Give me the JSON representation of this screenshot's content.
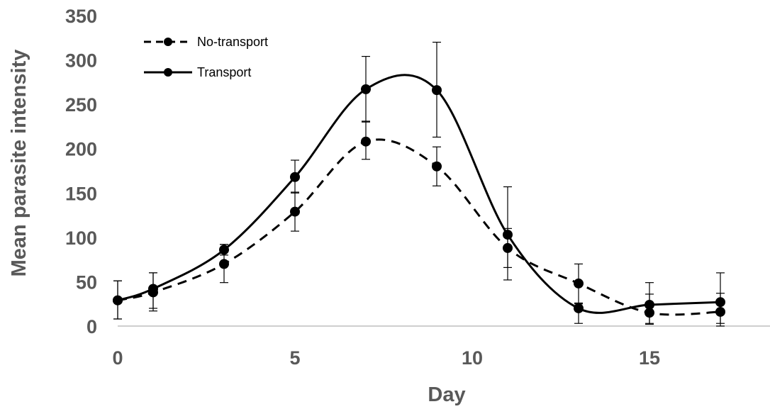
{
  "chart_data": {
    "type": "line",
    "title": "",
    "xlabel": "Day",
    "ylabel": "Mean parasite intensity",
    "xlim": [
      0,
      18
    ],
    "ylim": [
      0,
      350
    ],
    "x_ticks": [
      0,
      5,
      10,
      15
    ],
    "y_ticks": [
      0,
      50,
      100,
      150,
      200,
      250,
      300,
      350
    ],
    "grid": false,
    "legend_position": "top-left",
    "x": [
      0,
      1,
      3,
      5,
      7,
      9,
      11,
      13,
      15,
      17
    ],
    "series": [
      {
        "name": "No-transport",
        "style": "dashed",
        "color": "#000000",
        "values": [
          29,
          38,
          70,
          129,
          208,
          180,
          88,
          48,
          15,
          16
        ],
        "error_low": [
          8,
          17,
          49,
          107,
          188,
          158,
          66,
          26,
          2,
          0
        ],
        "error_high": [
          51,
          60,
          92,
          151,
          231,
          202,
          110,
          70,
          36,
          37
        ]
      },
      {
        "name": "Transport",
        "style": "solid",
        "color": "#000000",
        "values": [
          29,
          42,
          86,
          168,
          267,
          266,
          103,
          20,
          24,
          27
        ],
        "error_low": [
          8,
          20,
          80,
          150,
          230,
          213,
          52,
          3,
          3,
          3
        ],
        "error_high": [
          51,
          60,
          92,
          187,
          304,
          320,
          157,
          25,
          49,
          60
        ]
      }
    ]
  }
}
